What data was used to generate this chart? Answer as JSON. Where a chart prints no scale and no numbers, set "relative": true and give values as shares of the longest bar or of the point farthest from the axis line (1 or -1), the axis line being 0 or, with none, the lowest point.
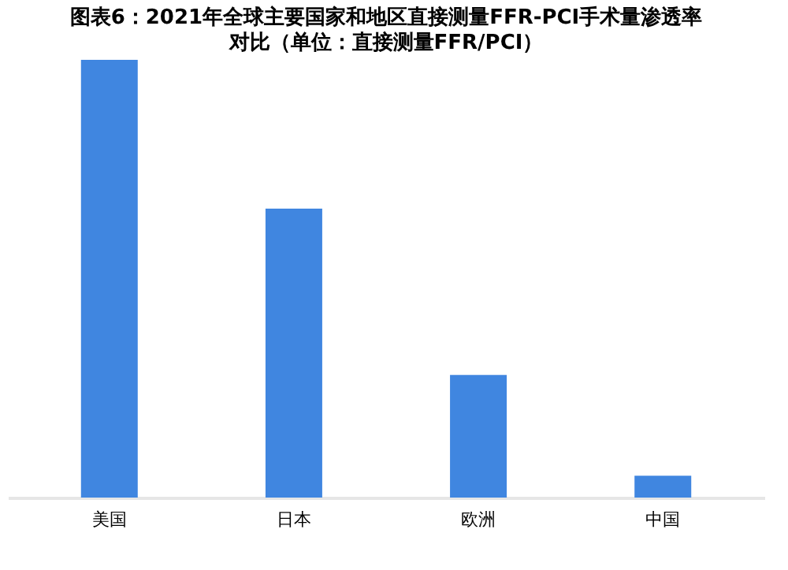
{
  "chart_data": {
    "type": "bar",
    "title": "图表6：2021年全球主要国家和地区直接测量FFR-PCI手术量渗透率对比（单位：直接测量FFR/PCI）",
    "categories": [
      "美国",
      "日本",
      "欧洲",
      "中国"
    ],
    "values": [
      1,
      0.66,
      0.28,
      0.05
    ],
    "color": "#4086e0",
    "relative": true,
    "grid": false
  }
}
